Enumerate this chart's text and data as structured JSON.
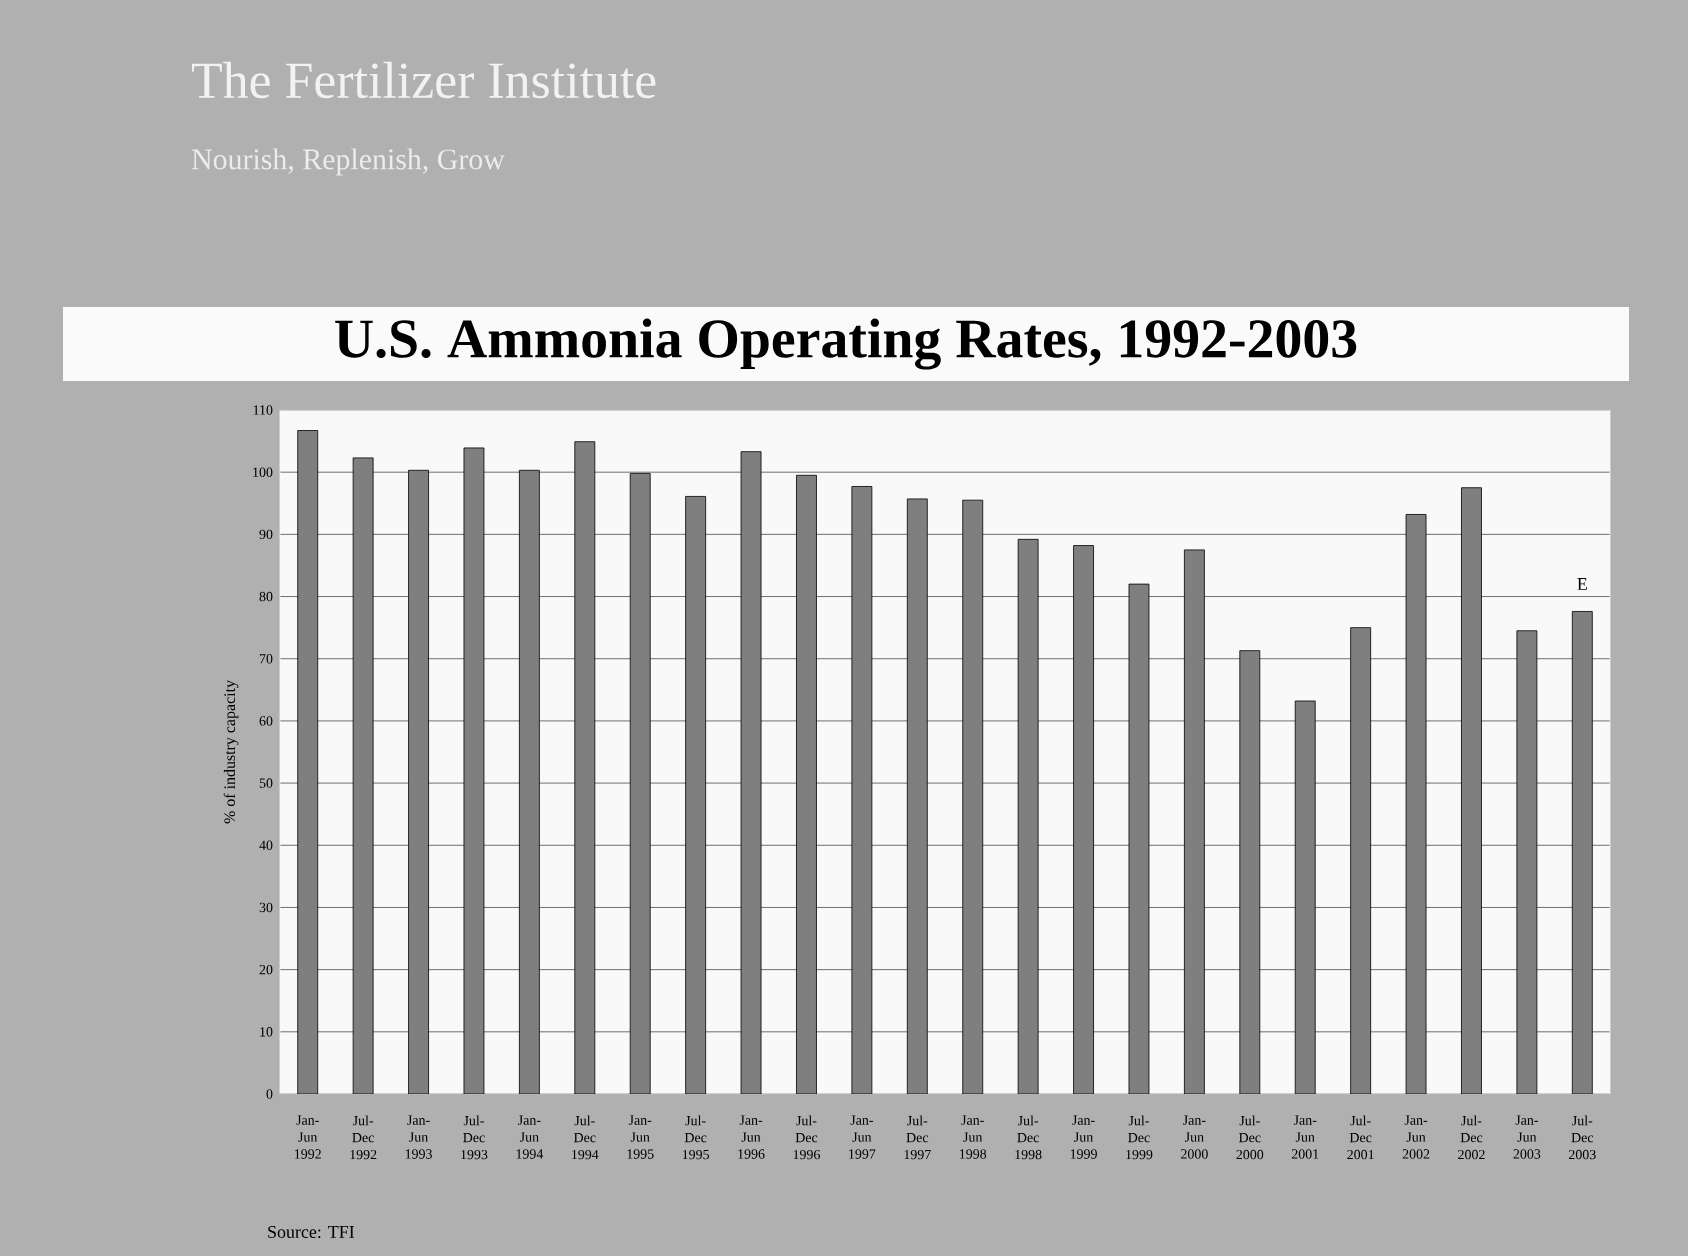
{
  "chart_data": {
    "type": "bar",
    "title": "U.S. Ammonia Operating Rates, 1992-2003",
    "subtitle": "The Fertilizer Institute",
    "ylabel": "% of industry capacity",
    "categories": [
      "Jan-Jun 1992",
      "Jul-Dec 1992",
      "Jan-Jun 1993",
      "Jul-Dec 1993",
      "Jan-Jun 1994",
      "Jul-Dec 1994",
      "Jan-Jun 1995",
      "Jul-Dec 1995",
      "Jan-Jun 1996",
      "Jul-Dec 1996",
      "Jan-Jun 1997",
      "Jul-Dec 1997",
      "Jan-Jun 1998",
      "Jul-Dec 1998",
      "Jan-Jun 1999",
      "Jul-Dec 1999",
      "Jan-Jun 2000",
      "Jul-Dec 2000",
      "Jan-Jun 2001",
      "Jul-Dec 2001",
      "Jan-Jun 2002",
      "Jul-Dec 2002",
      "Jan-Jun 2003",
      "Jul-Dec 2003"
    ],
    "values": [
      106.7,
      102.3,
      100.3,
      103.9,
      100.3,
      104.9,
      99.8,
      96.1,
      103.3,
      99.5,
      97.7,
      95.7,
      95.5,
      89.2,
      88.2,
      82.0,
      87.5,
      71.3,
      63.2,
      75.0,
      93.2,
      97.5,
      74.5,
      77.6
    ],
    "color": "#7f7f7f",
    "ylim": [
      0,
      110
    ],
    "yticks": [
      0,
      10,
      20,
      30,
      40,
      50,
      60,
      70,
      80,
      90,
      100,
      110
    ],
    "grid": "y",
    "annotations": [
      "Nourish, Replenish, Grow",
      "E",
      "Source: TFI"
    ]
  }
}
